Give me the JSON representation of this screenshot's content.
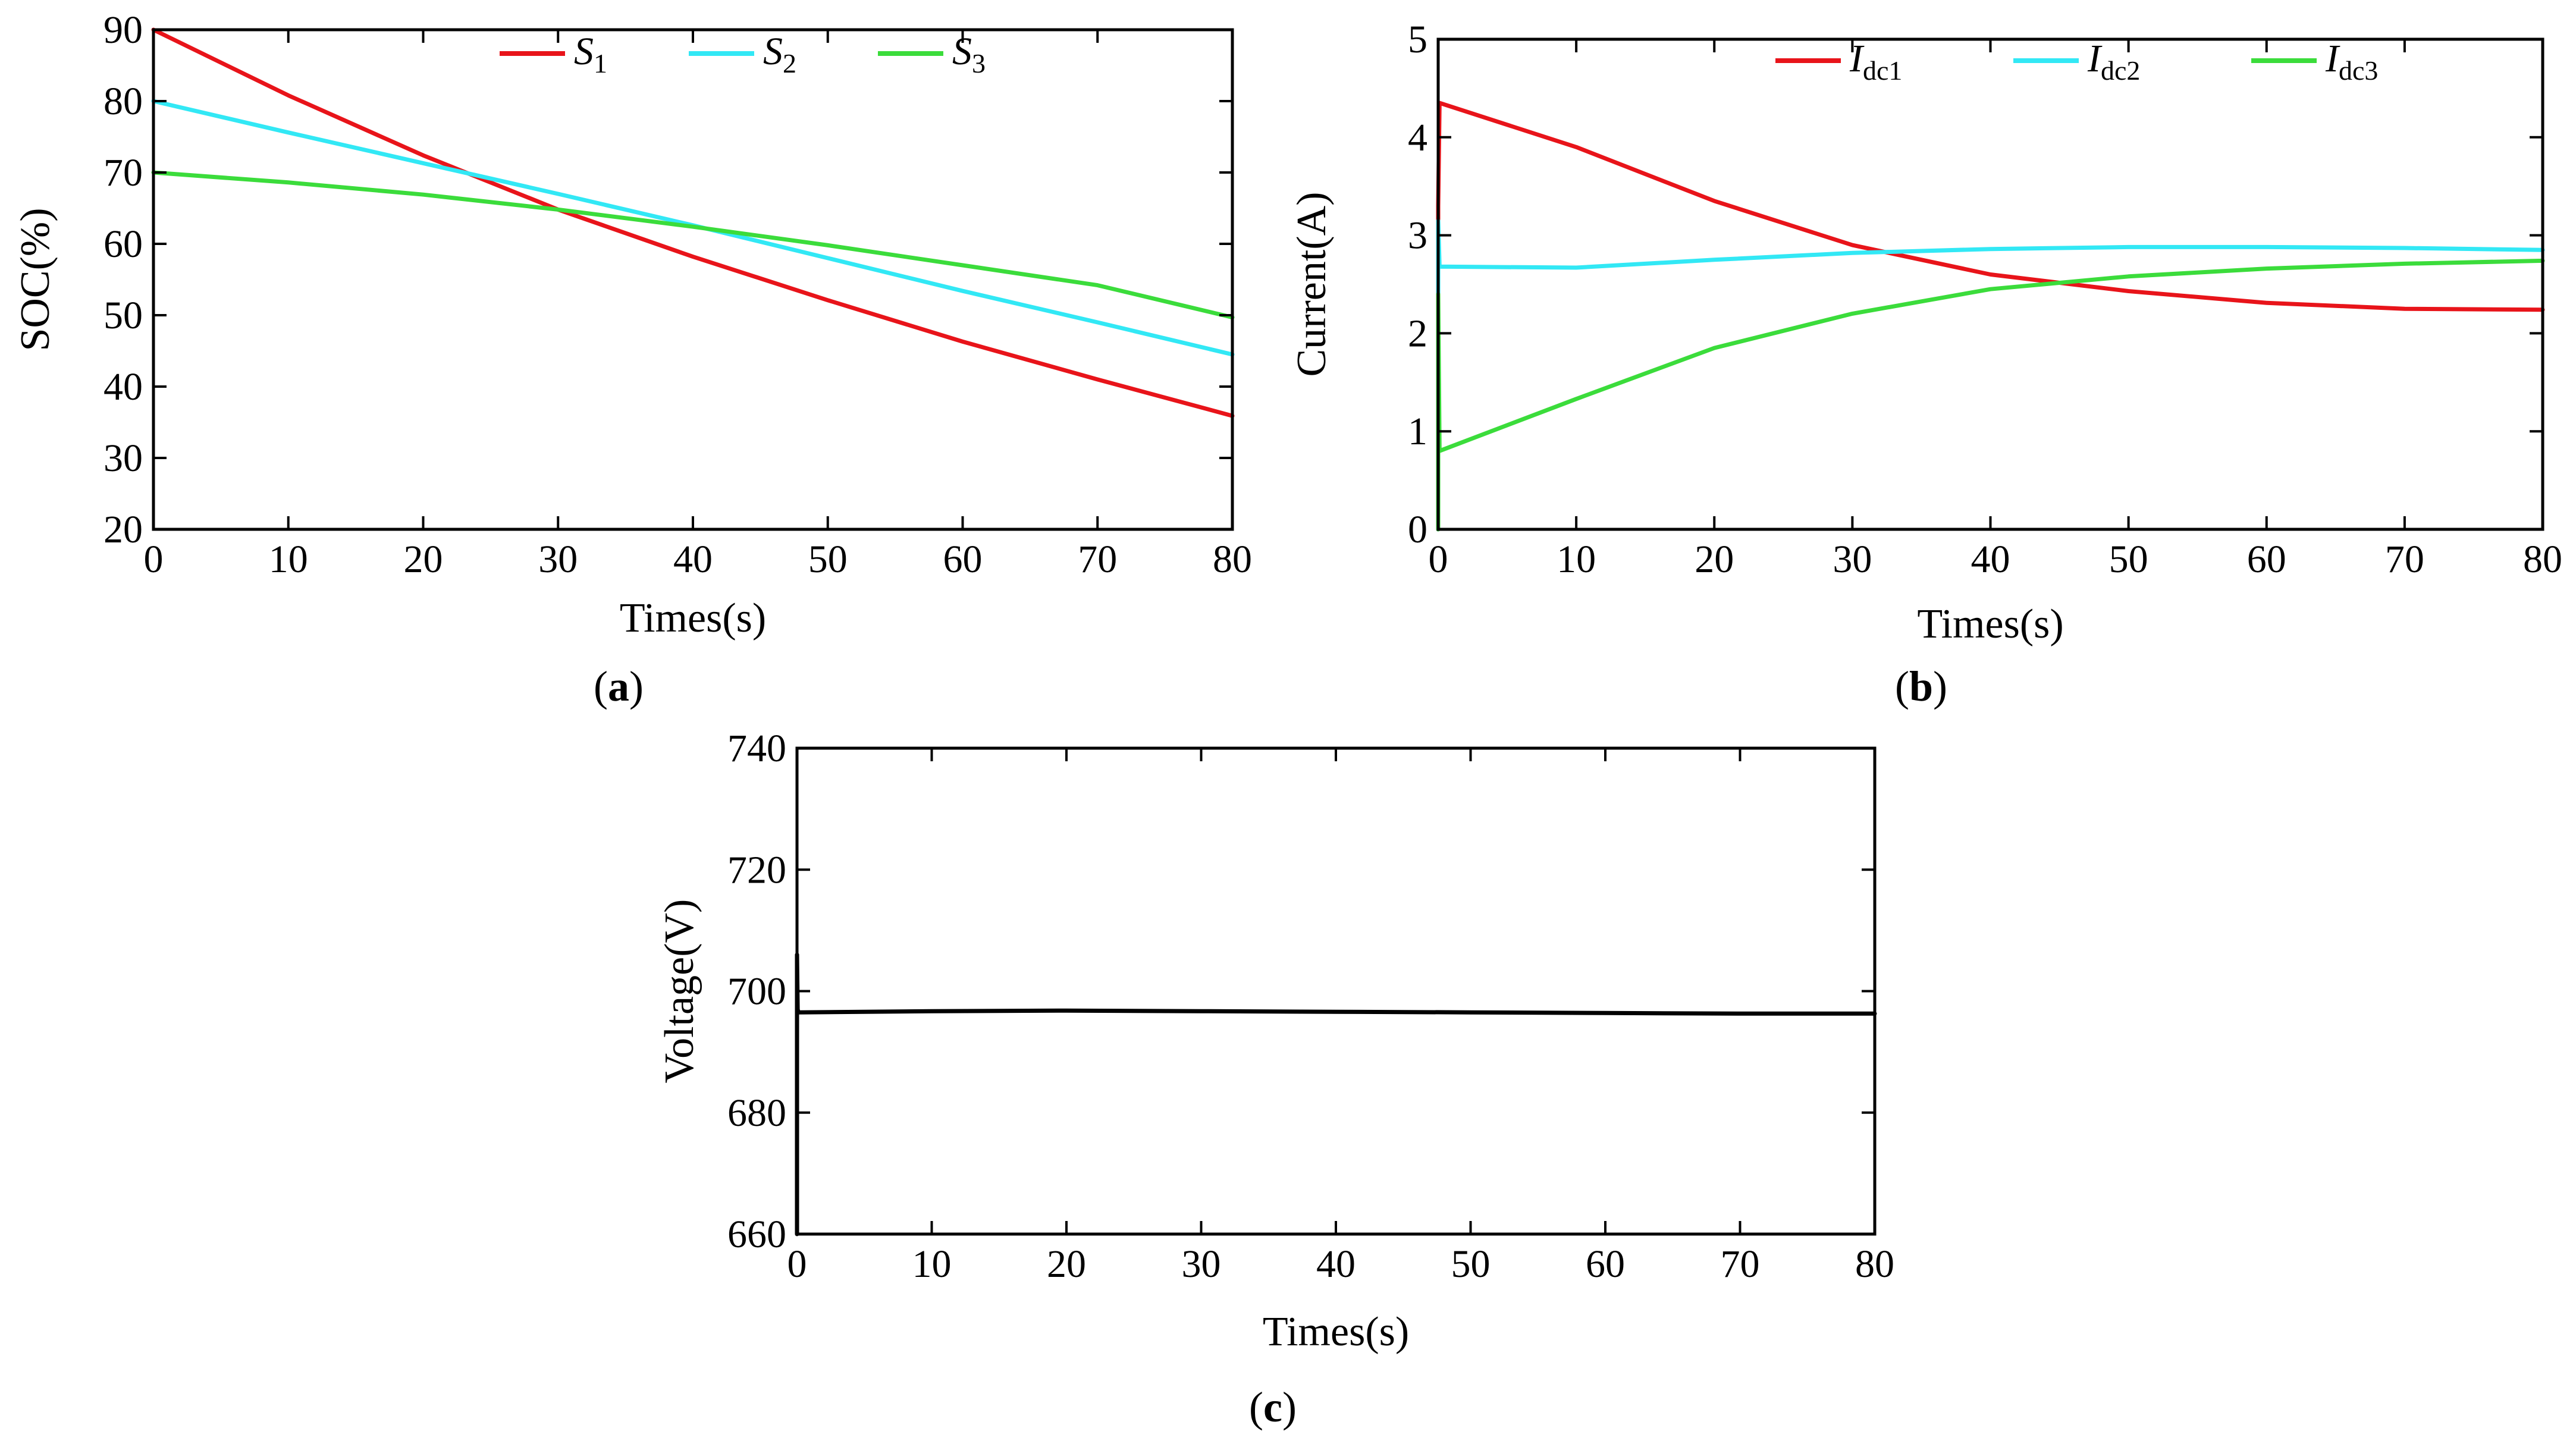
{
  "chart_data": [
    {
      "id": "a",
      "type": "line",
      "panel_label": "a",
      "xlabel": "Times(s)",
      "ylabel": "SOC(%)",
      "xlim": [
        0,
        80
      ],
      "ylim": [
        20,
        90
      ],
      "xticks": [
        0,
        10,
        20,
        30,
        40,
        50,
        60,
        70,
        80
      ],
      "yticks": [
        20,
        30,
        40,
        50,
        60,
        70,
        80,
        90
      ],
      "legend_position": "top-center",
      "series": [
        {
          "name": "S",
          "sub": "1",
          "color": "#e8141a",
          "x": [
            0,
            10,
            20,
            30,
            40,
            50,
            60,
            70,
            80
          ],
          "y": [
            90,
            80.8,
            72.4,
            64.8,
            58.2,
            52.1,
            46.3,
            41.0,
            35.9
          ]
        },
        {
          "name": "S",
          "sub": "2",
          "color": "#32e8f5",
          "x": [
            0,
            10,
            20,
            30,
            40,
            50,
            60,
            70,
            80
          ],
          "y": [
            80,
            75.6,
            71.3,
            67.0,
            62.6,
            58.0,
            53.4,
            49.0,
            44.5
          ]
        },
        {
          "name": "S",
          "sub": "3",
          "color": "#3bdc3b",
          "x": [
            0,
            10,
            20,
            30,
            40,
            50,
            60,
            70,
            80
          ],
          "y": [
            70,
            68.6,
            66.9,
            64.8,
            62.4,
            59.8,
            57.0,
            54.2,
            49.7
          ]
        }
      ]
    },
    {
      "id": "b",
      "type": "line",
      "panel_label": "b",
      "xlabel": "Times(s)",
      "ylabel": "Current(A)",
      "xlim": [
        0,
        80
      ],
      "ylim": [
        0,
        5
      ],
      "xticks": [
        0,
        10,
        20,
        30,
        40,
        50,
        60,
        70,
        80
      ],
      "yticks": [
        0,
        1,
        2,
        3,
        4,
        5
      ],
      "legend_position": "top-center",
      "series": [
        {
          "name": "I",
          "sub": "dc1",
          "color": "#e8141a",
          "x": [
            0,
            0,
            0.1,
            10,
            20,
            30,
            40,
            50,
            60,
            70,
            80
          ],
          "y": [
            0,
            3.3,
            4.35,
            3.9,
            3.35,
            2.9,
            2.6,
            2.43,
            2.31,
            2.25,
            2.24
          ]
        },
        {
          "name": "I",
          "sub": "dc2",
          "color": "#32e8f5",
          "x": [
            0,
            0,
            0.1,
            10,
            20,
            30,
            40,
            50,
            60,
            70,
            80
          ],
          "y": [
            0,
            3.15,
            2.68,
            2.67,
            2.75,
            2.82,
            2.86,
            2.88,
            2.88,
            2.87,
            2.85
          ]
        },
        {
          "name": "I",
          "sub": "dc3",
          "color": "#3bdc3b",
          "x": [
            0,
            0,
            0.1,
            10,
            20,
            30,
            40,
            50,
            60,
            70,
            80
          ],
          "y": [
            0,
            2.4,
            0.8,
            1.33,
            1.85,
            2.2,
            2.45,
            2.58,
            2.66,
            2.71,
            2.74
          ]
        }
      ]
    },
    {
      "id": "c",
      "type": "line",
      "panel_label": "c",
      "xlabel": "Times(s)",
      "ylabel": "Voltage(V)",
      "xlim": [
        0,
        80
      ],
      "ylim": [
        660,
        740
      ],
      "xticks": [
        0,
        10,
        20,
        30,
        40,
        50,
        60,
        70,
        80
      ],
      "yticks": [
        660,
        680,
        700,
        720,
        740
      ],
      "series": [
        {
          "name": "Voltage",
          "color": "#000000",
          "x": [
            0,
            0,
            0.05,
            0.1,
            10,
            20,
            30,
            40,
            50,
            60,
            70,
            80
          ],
          "y": [
            660,
            706,
            697,
            696.5,
            696.7,
            696.8,
            696.7,
            696.6,
            696.5,
            696.4,
            696.3,
            696.3
          ]
        }
      ]
    }
  ]
}
